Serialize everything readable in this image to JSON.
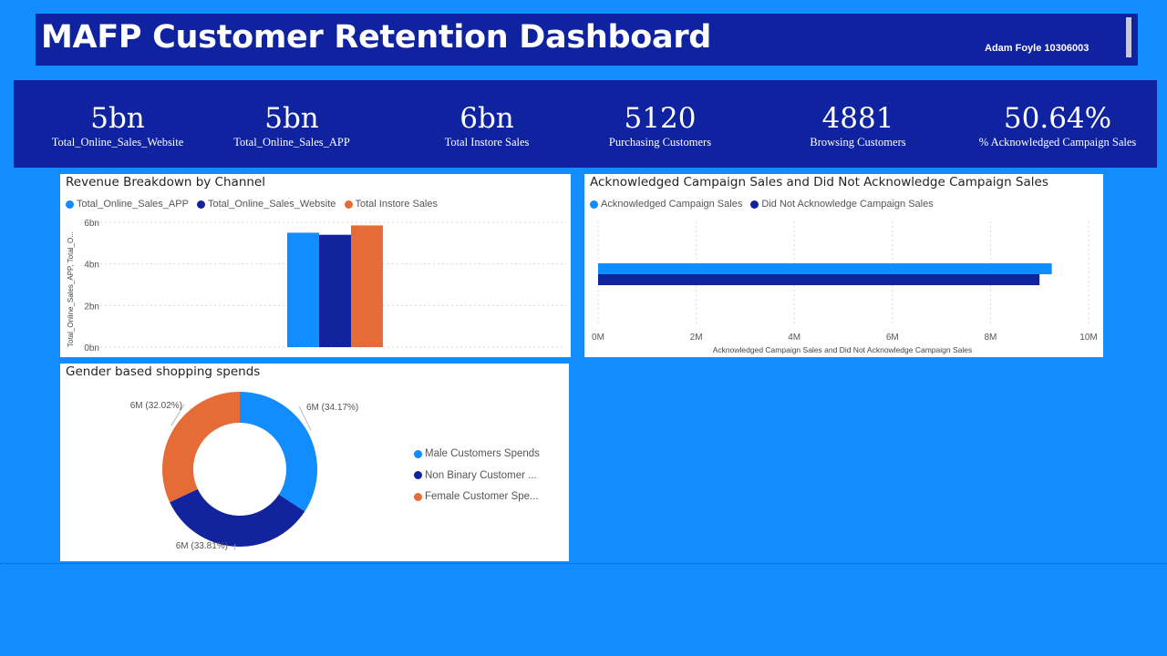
{
  "header": {
    "title": "MAFP Customer Retention Dashboard",
    "author": "Adam Foyle 10306003"
  },
  "kpis": [
    {
      "value": "5bn",
      "label": "Total_Online_Sales_Website"
    },
    {
      "value": "5bn",
      "label": "Total_Online_Sales_APP"
    },
    {
      "value": "6bn",
      "label": "Total Instore Sales"
    },
    {
      "value": "5120",
      "label": "Purchasing Customers"
    },
    {
      "value": "4881",
      "label": "Browsing Customers"
    },
    {
      "value": "50.64%",
      "label": "% Acknowledged Campaign Sales"
    }
  ],
  "colors": {
    "light_blue": "#118dff",
    "dark_blue": "#12239e",
    "orange": "#e66c37",
    "background": "#138cff",
    "header_bg": "#0f22a0"
  },
  "chart_data": [
    {
      "type": "bar",
      "title": "Revenue Breakdown by Channel",
      "ylabel": "Total_Online_Sales_APP, Total_O...",
      "ylim": [
        0,
        6
      ],
      "yticks": [
        "0bn",
        "2bn",
        "4bn",
        "6bn"
      ],
      "legend_position": "top-left",
      "series": [
        {
          "name": "Total_Online_Sales_APP",
          "values": [
            5.5
          ],
          "color": "#118dff"
        },
        {
          "name": "Total_Online_Sales_Website",
          "values": [
            5.4
          ],
          "color": "#12239e"
        },
        {
          "name": "Total Instore Sales",
          "values": [
            5.85
          ],
          "color": "#e66c37"
        }
      ]
    },
    {
      "type": "bar",
      "orientation": "horizontal",
      "title": "Acknowledged Campaign Sales and Did Not Acknowledge Campaign Sales",
      "xlabel": "Acknowledged Campaign Sales and Did Not Acknowledge Campaign Sales",
      "xlim": [
        0,
        10
      ],
      "xticks": [
        "0M",
        "2M",
        "4M",
        "6M",
        "8M",
        "10M"
      ],
      "legend_position": "top-left",
      "series": [
        {
          "name": "Acknowledged Campaign Sales",
          "values": [
            9.25
          ],
          "color": "#118dff"
        },
        {
          "name": "Did Not Acknowledge Campaign Sales",
          "values": [
            9.0
          ],
          "color": "#12239e"
        }
      ]
    },
    {
      "type": "pie",
      "donut": true,
      "title": "Gender based shopping spends",
      "legend_position": "right",
      "slices": [
        {
          "name": "Male Customers Spends",
          "legend_label": "Male Customers Spends",
          "value": 34.17,
          "label": "6M (34.17%)",
          "color": "#118dff"
        },
        {
          "name": "Non Binary Customer Spends",
          "legend_label": "Non Binary Customer ...",
          "value": 33.81,
          "label": "6M (33.81%)",
          "color": "#12239e"
        },
        {
          "name": "Female Customer Spends",
          "legend_label": "Female Customer Spe...",
          "value": 32.02,
          "label": "6M (32.02%)",
          "color": "#e66c37"
        }
      ]
    }
  ]
}
